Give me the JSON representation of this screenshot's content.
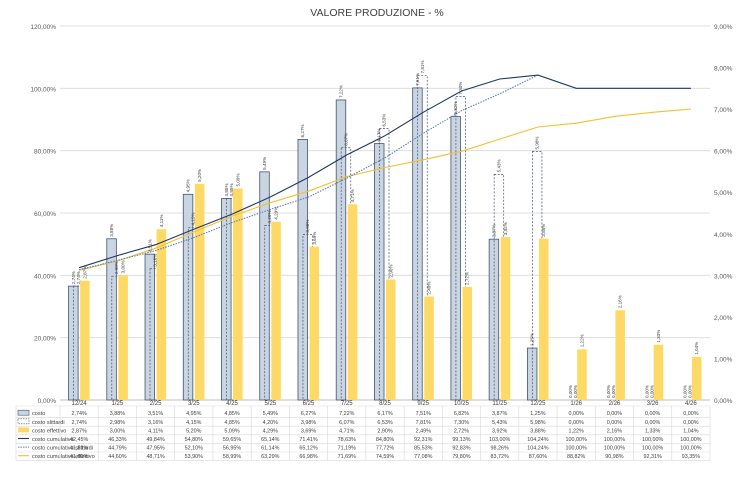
{
  "chart_data": {
    "type": "bar",
    "title": "VALORE PRODUZIONE - %",
    "categories": [
      "12/24",
      "1/25",
      "2/25",
      "3/25",
      "4/25",
      "5/25",
      "6/25",
      "7/25",
      "8/25",
      "9/25",
      "10/25",
      "11/25",
      "12/25",
      "1/26",
      "2/26",
      "3/26",
      "4/26"
    ],
    "y_left": {
      "min": 0,
      "max": 120,
      "ticks": [
        "0,00%",
        "20,00%",
        "40,00%",
        "60,00%",
        "80,00%",
        "100,00%",
        "120,00%"
      ]
    },
    "y_right": {
      "min": 0,
      "max": 9,
      "ticks": [
        "0,00%",
        "1,00%",
        "2,00%",
        "3,00%",
        "4,00%",
        "5,00%",
        "6,00%",
        "7,00%",
        "8,00%",
        "9,00%"
      ]
    },
    "series": [
      {
        "name": "costo",
        "kind": "bar",
        "axis": "right",
        "color": "#c9d5e2",
        "stroke": "#44546a",
        "values": [
          2.74,
          3.88,
          3.51,
          4.95,
          4.85,
          5.49,
          6.27,
          7.22,
          6.17,
          7.51,
          6.82,
          3.87,
          1.25,
          0,
          0,
          0,
          0
        ],
        "labels": [
          "2,74%",
          "3,88%",
          "3,51%",
          "4,95%",
          "4,85%",
          "5,49%",
          "6,27%",
          "7,22%",
          "6,17%",
          "7,51%",
          "6,82%",
          "3,87%",
          "1,25%",
          "0,00%",
          "0,00%",
          "0,00%",
          "0,00%"
        ]
      },
      {
        "name": "costo slittardi",
        "kind": "dashed-bar",
        "axis": "right",
        "color": "#44546a",
        "values": [
          2.74,
          2.98,
          3.16,
          4.15,
          4.85,
          4.2,
          3.98,
          6.07,
          6.53,
          7.81,
          7.3,
          5.43,
          5.98,
          0,
          0,
          0,
          0
        ],
        "labels": [
          "2,74%",
          "2,98%",
          "3,16%",
          "4,15%",
          "4,85%",
          "4,20%",
          "3,98%",
          "6,07%",
          "6,53%",
          "7,81%",
          "7,30%",
          "5,43%",
          "5,98%",
          "0,00%",
          "0,00%",
          "0,00%",
          "0,00%"
        ]
      },
      {
        "name": "costo effettivo",
        "kind": "bar",
        "axis": "right",
        "color": "#ffd966",
        "values": [
          2.87,
          3.0,
          4.11,
          5.2,
          5.09,
          4.29,
          3.69,
          4.71,
          2.9,
          2.49,
          2.72,
          3.92,
          3.88,
          1.22,
          2.16,
          1.33,
          1.04
        ],
        "labels": [
          "2,87%",
          "3,00%",
          "4,11%",
          "5,20%",
          "5,09%",
          "4,29%",
          "3,69%",
          "4,71%",
          "2,90%",
          "2,49%",
          "2,72%",
          "3,92%",
          "3,88%",
          "1,22%",
          "2,16%",
          "1,33%",
          "1,04%"
        ]
      },
      {
        "name": "costo cumulativo",
        "kind": "line",
        "axis": "left",
        "color": "#1f3864",
        "values": [
          42.45,
          46.33,
          49.84,
          54.8,
          59.65,
          65.14,
          71.41,
          78.63,
          84.8,
          92.31,
          99.13,
          103.0,
          104.24,
          100,
          100,
          100,
          100
        ],
        "labels": [
          "42,45%",
          "46,33%",
          "49,84%",
          "54,80%",
          "59,65%",
          "65,14%",
          "71,41%",
          "78,63%",
          "84,80%",
          "92,31%",
          "99,13%",
          "103,00%",
          "104,24%",
          "100,00%",
          "100,00%",
          "100,00%",
          "100,00%"
        ]
      },
      {
        "name": "costo cumulativo slittardi",
        "kind": "dotted-line",
        "axis": "left",
        "color": "#5b7fb0",
        "values": [
          41.81,
          44.79,
          47.95,
          52.1,
          56.95,
          61.14,
          65.12,
          71.19,
          77.72,
          85.53,
          92.83,
          98.26,
          104.24,
          null,
          null,
          null,
          null
        ],
        "labels": [
          "41,81%",
          "44,79%",
          "47,95%",
          "52,10%",
          "56,95%",
          "61,14%",
          "65,12%",
          "71,19%",
          "77,72%",
          "85,53%",
          "92,83%",
          "98,26%",
          "104,24%",
          "100,00%",
          "100,00%",
          "100,00%",
          "100,00%"
        ]
      },
      {
        "name": "costo cumulativo effettivo",
        "kind": "line",
        "axis": "left",
        "color": "#f2c12e",
        "values": [
          41.6,
          44.6,
          48.71,
          53.9,
          58.99,
          63.29,
          66.98,
          71.69,
          74.59,
          77.08,
          79.8,
          83.72,
          87.6,
          88.82,
          90.98,
          92.31,
          93.35
        ],
        "labels": [
          "41,60%",
          "44,60%",
          "48,71%",
          "53,90%",
          "58,99%",
          "63,29%",
          "66,98%",
          "71,69%",
          "74,59%",
          "77,08%",
          "79,80%",
          "83,72%",
          "87,60%",
          "88,82%",
          "90,98%",
          "92,31%",
          "93,35%"
        ]
      }
    ]
  }
}
